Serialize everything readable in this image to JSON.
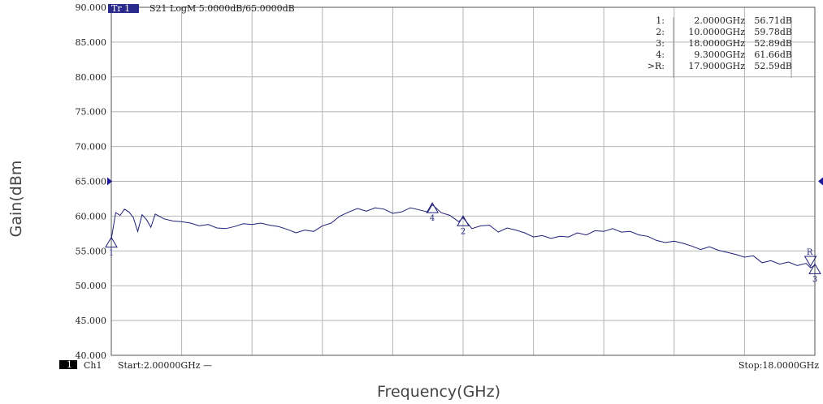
{
  "chart_data": {
    "type": "line",
    "title": "",
    "xlabel": "Frequency(GHz)",
    "ylabel": "Gain(dBm",
    "xlim": [
      2.0,
      18.0
    ],
    "ylim": [
      40,
      90
    ],
    "grid": true,
    "y_tick_labels": [
      "90.000",
      "85.000",
      "80.000",
      "75.000",
      "70.000",
      "65.000",
      "60.000",
      "55.000",
      "50.000",
      "45.000",
      "40.000"
    ],
    "trace_header": {
      "trace_tag": "Tr 1",
      "text": "S21 LogM 5.0000dB/65.0000dB"
    },
    "reference_level": 65,
    "footer": {
      "channel_number": "1",
      "channel": "Ch1",
      "start": "Start:2.00000GHz —",
      "stop": "Stop:18.0000GHz"
    },
    "marker_table": [
      {
        "label": "1:",
        "freq": "2.0000GHz",
        "value": "56.71dB"
      },
      {
        "label": "2:",
        "freq": "10.0000GHz",
        "value": "59.78dB"
      },
      {
        "label": "3:",
        "freq": "18.0000GHz",
        "value": "52.89dB"
      },
      {
        "label": "4:",
        "freq": "9.3000GHz",
        "value": "61.66dB"
      },
      {
        "label": ">R:",
        "freq": "17.9000GHz",
        "value": "52.59dB"
      }
    ],
    "markers": [
      {
        "name": "1",
        "x": 2.0,
        "y": 56.71
      },
      {
        "name": "2",
        "x": 10.0,
        "y": 59.78
      },
      {
        "name": "3",
        "x": 18.0,
        "y": 52.89
      },
      {
        "name": "4",
        "x": 9.3,
        "y": 61.66
      },
      {
        "name": "R",
        "x": 17.9,
        "y": 52.59
      }
    ],
    "series": [
      {
        "x": [
          2.0,
          2.1,
          2.2,
          2.3,
          2.4,
          2.5,
          2.6,
          2.7,
          2.8,
          2.9,
          3.0,
          3.2,
          3.4,
          3.6,
          3.8,
          4.0,
          4.2,
          4.4,
          4.6,
          4.8,
          5.0,
          5.2,
          5.4,
          5.6,
          5.8,
          6.0,
          6.2,
          6.4,
          6.6,
          6.8,
          7.0,
          7.2,
          7.4,
          7.6,
          7.8,
          8.0,
          8.2,
          8.4,
          8.6,
          8.8,
          9.0,
          9.2,
          9.3,
          9.5,
          9.7,
          9.9,
          10.0,
          10.2,
          10.4,
          10.6,
          10.8,
          11.0,
          11.2,
          11.4,
          11.6,
          11.8,
          12.0,
          12.2,
          12.4,
          12.6,
          12.8,
          13.0,
          13.2,
          13.4,
          13.6,
          13.8,
          14.0,
          14.2,
          14.4,
          14.6,
          14.8,
          15.0,
          15.2,
          15.4,
          15.6,
          15.8,
          16.0,
          16.2,
          16.4,
          16.6,
          16.8,
          17.0,
          17.2,
          17.4,
          17.6,
          17.8,
          17.9,
          18.0
        ],
        "y": [
          56.7,
          60.5,
          60.1,
          61.0,
          60.6,
          59.8,
          57.8,
          60.2,
          59.5,
          58.4,
          60.3,
          59.6,
          59.3,
          59.2,
          59.0,
          58.6,
          58.8,
          58.3,
          58.2,
          58.5,
          58.9,
          58.8,
          59.0,
          58.7,
          58.5,
          58.1,
          57.6,
          58.0,
          57.8,
          58.6,
          59.0,
          60.0,
          60.6,
          61.1,
          60.7,
          61.2,
          61.0,
          60.4,
          60.6,
          61.2,
          60.9,
          60.6,
          61.66,
          60.5,
          60.1,
          59.2,
          59.78,
          58.2,
          58.6,
          58.7,
          57.7,
          58.3,
          58.0,
          57.6,
          57.0,
          57.2,
          56.8,
          57.1,
          57.0,
          57.6,
          57.3,
          57.9,
          57.8,
          58.2,
          57.7,
          57.8,
          57.3,
          57.1,
          56.5,
          56.2,
          56.4,
          56.1,
          55.7,
          55.2,
          55.6,
          55.1,
          54.8,
          54.5,
          54.1,
          54.3,
          53.3,
          53.6,
          53.1,
          53.4,
          52.9,
          53.2,
          52.59,
          52.89
        ]
      }
    ],
    "colors": {
      "trace": "#1f1f78",
      "grid": "#b4b4b4",
      "frame": "#555555",
      "tag_bg": "#2a2a8c",
      "tag_text": "#ffffff",
      "ref_arrow": "#1a1a9a"
    }
  }
}
